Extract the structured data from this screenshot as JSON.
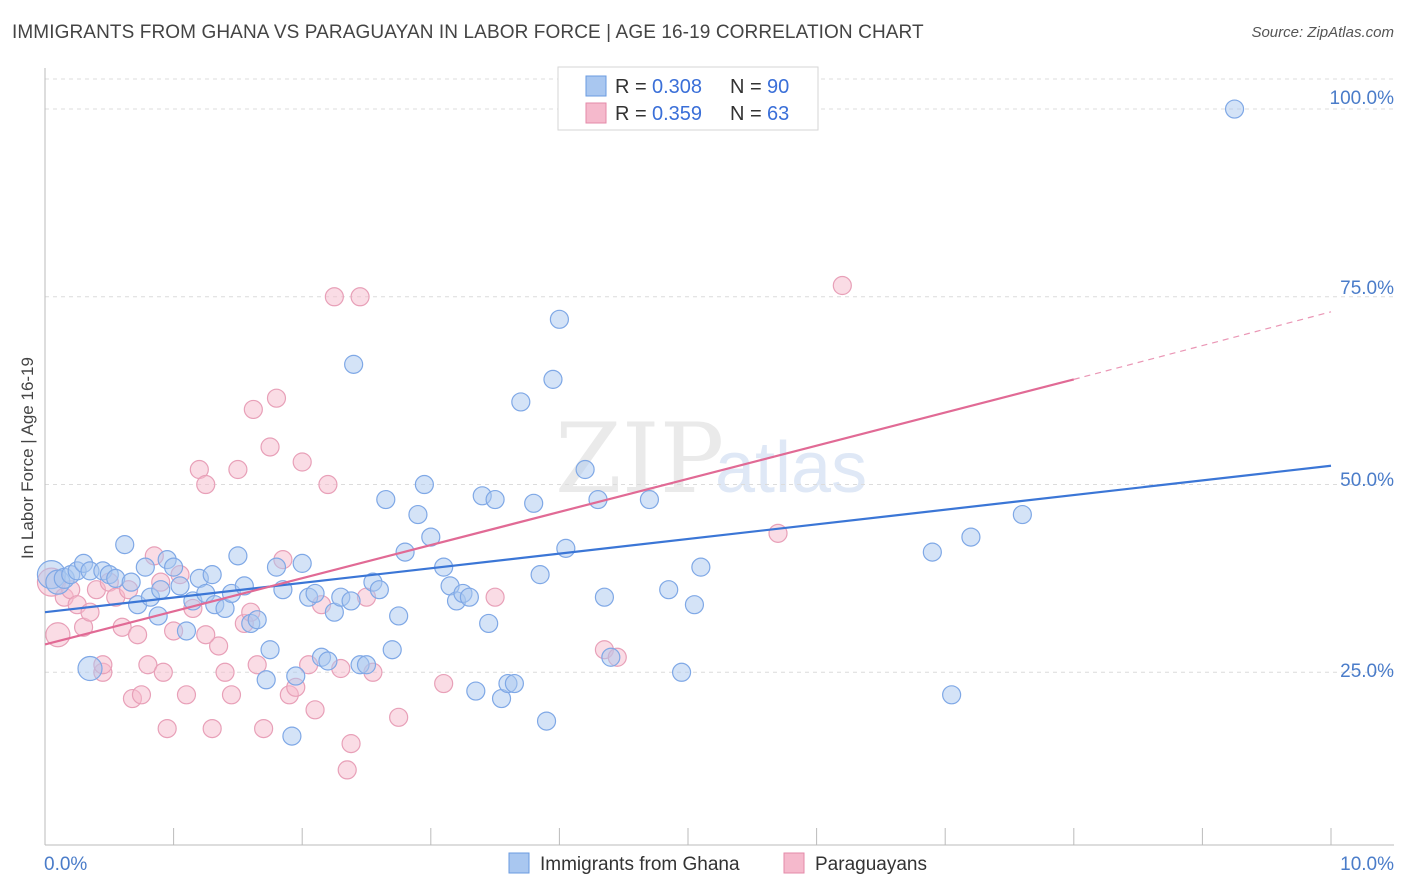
{
  "title": "IMMIGRANTS FROM GHANA VS PARAGUAYAN IN LABOR FORCE | AGE 16-19 CORRELATION CHART",
  "source": "Source: ZipAtlas.com",
  "watermark": {
    "zip": "ZIP",
    "atlas": "atlas"
  },
  "colors": {
    "blue": "#3b76d6",
    "blue_fill": "#a9c7f0",
    "pink": "#e16a95",
    "pink_fill": "#f5b9cc",
    "accent_text": "#4a7cc9"
  },
  "chart_data": {
    "type": "scatter",
    "title": "IMMIGRANTS FROM GHANA VS PARAGUAYAN IN LABOR FORCE | AGE 16-19 CORRELATION CHART",
    "xlabel": "",
    "ylabel": "In Labor Force | Age 16-19",
    "xlim": [
      0,
      10
    ],
    "ylim": [
      2,
      104
    ],
    "x_tick_labels": [
      "0.0%",
      "10.0%"
    ],
    "y_ticks": [
      25,
      50,
      75,
      100
    ],
    "y_tick_labels": [
      "25.0%",
      "50.0%",
      "75.0%",
      "100.0%"
    ],
    "legend": {
      "r_label": "R =",
      "n_label": "N =",
      "entries": [
        {
          "name": "Immigrants from Ghana",
          "r": "0.308",
          "n": "90"
        },
        {
          "name": "Paraguayans",
          "r": "0.359",
          "n": "63"
        }
      ]
    },
    "series": [
      {
        "name": "Immigrants from Ghana",
        "color": "#3b76d6",
        "trend": {
          "x0": 0.0,
          "y0": 33.0,
          "x1": 10.0,
          "y1": 52.5
        },
        "points": [
          [
            0.05,
            38,
            14
          ],
          [
            0.1,
            37,
            12
          ],
          [
            0.15,
            37.5,
            10
          ],
          [
            0.2,
            38,
            9
          ],
          [
            0.25,
            38.5,
            9
          ],
          [
            0.3,
            39.5,
            9
          ],
          [
            0.35,
            38.5,
            9
          ],
          [
            0.45,
            38.5,
            9
          ],
          [
            0.5,
            38,
            9
          ],
          [
            0.55,
            37.5,
            9
          ],
          [
            0.62,
            42,
            9
          ],
          [
            0.67,
            37,
            9
          ],
          [
            0.72,
            34,
            9
          ],
          [
            0.78,
            39,
            9
          ],
          [
            0.82,
            35,
            9
          ],
          [
            0.88,
            32.5,
            9
          ],
          [
            0.9,
            36,
            9
          ],
          [
            0.95,
            40,
            9
          ],
          [
            1.0,
            39,
            9
          ],
          [
            1.05,
            36.5,
            9
          ],
          [
            1.1,
            30.5,
            9
          ],
          [
            1.15,
            34.5,
            9
          ],
          [
            1.2,
            37.5,
            9
          ],
          [
            1.25,
            35.5,
            9
          ],
          [
            1.3,
            38,
            9
          ],
          [
            1.32,
            34,
            9
          ],
          [
            1.4,
            33.5,
            9
          ],
          [
            1.45,
            35.5,
            9
          ],
          [
            1.5,
            40.5,
            9
          ],
          [
            1.55,
            36.5,
            9
          ],
          [
            1.6,
            31.5,
            9
          ],
          [
            1.65,
            32,
            9
          ],
          [
            1.72,
            24,
            9
          ],
          [
            1.75,
            28,
            9
          ],
          [
            1.8,
            39,
            9
          ],
          [
            1.85,
            36,
            9
          ],
          [
            1.92,
            16.5,
            9
          ],
          [
            1.95,
            24.5,
            9
          ],
          [
            2.0,
            39.5,
            9
          ],
          [
            2.05,
            35,
            9
          ],
          [
            2.1,
            35.5,
            9
          ],
          [
            2.15,
            27,
            9
          ],
          [
            2.2,
            26.5,
            9
          ],
          [
            2.25,
            33,
            9
          ],
          [
            2.3,
            35,
            9
          ],
          [
            2.38,
            34.5,
            9
          ],
          [
            2.4,
            66,
            9
          ],
          [
            2.45,
            26,
            9
          ],
          [
            2.5,
            26,
            9
          ],
          [
            2.55,
            37,
            9
          ],
          [
            2.6,
            36,
            9
          ],
          [
            2.65,
            48,
            9
          ],
          [
            2.7,
            28,
            9
          ],
          [
            2.75,
            32.5,
            9
          ],
          [
            2.8,
            41,
            9
          ],
          [
            2.9,
            46,
            9
          ],
          [
            2.95,
            50,
            9
          ],
          [
            3.0,
            43,
            9
          ],
          [
            3.1,
            39,
            9
          ],
          [
            3.15,
            36.5,
            9
          ],
          [
            3.2,
            34.5,
            9
          ],
          [
            3.25,
            35.5,
            9
          ],
          [
            3.3,
            35,
            9
          ],
          [
            3.35,
            22.5,
            9
          ],
          [
            3.4,
            48.5,
            9
          ],
          [
            3.45,
            31.5,
            9
          ],
          [
            3.5,
            48,
            9
          ],
          [
            3.55,
            21.5,
            9
          ],
          [
            3.6,
            23.5,
            9
          ],
          [
            3.65,
            23.5,
            9
          ],
          [
            3.7,
            61,
            9
          ],
          [
            3.8,
            47.5,
            9
          ],
          [
            3.85,
            38,
            9
          ],
          [
            3.9,
            18.5,
            9
          ],
          [
            3.95,
            64,
            9
          ],
          [
            4.0,
            72,
            9
          ],
          [
            4.05,
            41.5,
            9
          ],
          [
            4.2,
            52,
            9
          ],
          [
            4.3,
            48,
            9
          ],
          [
            4.35,
            35,
            9
          ],
          [
            4.4,
            27,
            9
          ],
          [
            4.7,
            48,
            9
          ],
          [
            4.85,
            36,
            9
          ],
          [
            4.95,
            25,
            9
          ],
          [
            5.05,
            34,
            9
          ],
          [
            5.1,
            39,
            9
          ],
          [
            6.9,
            41,
            9
          ],
          [
            7.05,
            22,
            9
          ],
          [
            7.2,
            43,
            9
          ],
          [
            7.6,
            46,
            9
          ],
          [
            9.25,
            100,
            9
          ],
          [
            0.35,
            25.5,
            12
          ]
        ]
      },
      {
        "name": "Paraguayans",
        "color": "#e16a95",
        "trend": {
          "x0": 0.0,
          "y0": 28.7,
          "x1": 8.0,
          "y1": 64.0,
          "dash_to_x": 10.0,
          "dash_to_y": 73.0
        },
        "points": [
          [
            0.05,
            37,
            14
          ],
          [
            0.1,
            30,
            12
          ],
          [
            0.15,
            35,
            9
          ],
          [
            0.2,
            36,
            9
          ],
          [
            0.25,
            34,
            9
          ],
          [
            0.3,
            31,
            9
          ],
          [
            0.35,
            33,
            9
          ],
          [
            0.4,
            36,
            9
          ],
          [
            0.45,
            25,
            9
          ],
          [
            0.5,
            37,
            9
          ],
          [
            0.55,
            35,
            9
          ],
          [
            0.6,
            31,
            9
          ],
          [
            0.65,
            36,
            9
          ],
          [
            0.68,
            21.5,
            9
          ],
          [
            0.72,
            30,
            9
          ],
          [
            0.75,
            22,
            9
          ],
          [
            0.8,
            26,
            9
          ],
          [
            0.85,
            40.5,
            9
          ],
          [
            0.9,
            37,
            9
          ],
          [
            0.92,
            25,
            9
          ],
          [
            0.95,
            17.5,
            9
          ],
          [
            1.0,
            30.5,
            9
          ],
          [
            1.05,
            38,
            9
          ],
          [
            1.1,
            22,
            9
          ],
          [
            1.15,
            33.5,
            9
          ],
          [
            1.2,
            52,
            9
          ],
          [
            1.25,
            50,
            9
          ],
          [
            1.3,
            17.5,
            9
          ],
          [
            1.35,
            28.5,
            9
          ],
          [
            1.4,
            25,
            9
          ],
          [
            1.45,
            22,
            9
          ],
          [
            1.5,
            52,
            9
          ],
          [
            1.55,
            31.5,
            9
          ],
          [
            1.6,
            33,
            9
          ],
          [
            1.62,
            60,
            9
          ],
          [
            1.65,
            26,
            9
          ],
          [
            1.7,
            17.5,
            9
          ],
          [
            1.75,
            55,
            9
          ],
          [
            1.8,
            61.5,
            9
          ],
          [
            1.85,
            40,
            9
          ],
          [
            1.9,
            22,
            9
          ],
          [
            1.95,
            23,
            9
          ],
          [
            2.0,
            53,
            9
          ],
          [
            2.05,
            26,
            9
          ],
          [
            2.1,
            20,
            9
          ],
          [
            2.15,
            34,
            9
          ],
          [
            2.2,
            50,
            9
          ],
          [
            2.25,
            75,
            9
          ],
          [
            2.3,
            25.5,
            9
          ],
          [
            2.35,
            12,
            9
          ],
          [
            2.38,
            15.5,
            9
          ],
          [
            2.45,
            75,
            9
          ],
          [
            2.5,
            35,
            9
          ],
          [
            2.55,
            25,
            9
          ],
          [
            2.75,
            19,
            9
          ],
          [
            3.1,
            23.5,
            9
          ],
          [
            3.5,
            35,
            9
          ],
          [
            4.35,
            28,
            9
          ],
          [
            4.45,
            27,
            9
          ],
          [
            5.7,
            43.5,
            9
          ],
          [
            6.2,
            76.5,
            9
          ],
          [
            0.45,
            26,
            9
          ],
          [
            1.25,
            30,
            9
          ]
        ]
      }
    ]
  }
}
